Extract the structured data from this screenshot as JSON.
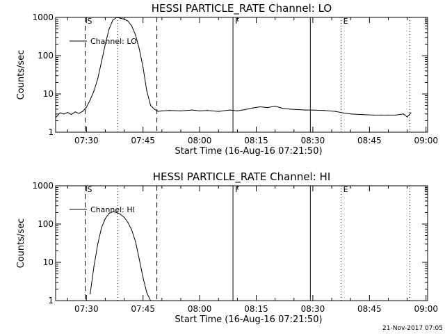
{
  "footer_timestamp": "21-Nov-2017 07:05",
  "chart_data": [
    {
      "type": "line",
      "title": "HESSI PARTICLE_RATE Channel: LO",
      "xlabel": "Start Time (16-Aug-16 07:21:50)",
      "ylabel": "Counts/sec",
      "y_scale": "log",
      "ylim": [
        1,
        1000
      ],
      "xlim": [
        "07:21:50",
        "09:00:25"
      ],
      "x_ticks": [
        "07:30",
        "07:45",
        "08:00",
        "08:15",
        "08:30",
        "08:45",
        "09:00"
      ],
      "y_ticks": [
        "1",
        "10",
        "100",
        "1000"
      ],
      "legend": {
        "placement": "top-left",
        "label": "Channel: LO"
      },
      "markers": [
        {
          "time": "07:29:40",
          "style": "dashed",
          "label": "S"
        },
        {
          "time": "07:48:40",
          "style": "dashed",
          "label": ""
        },
        {
          "time": "07:38:15",
          "style": "dotted",
          "label": ""
        },
        {
          "time": "08:08:50",
          "style": "solid",
          "label": "F"
        },
        {
          "time": "08:29:20",
          "style": "solid",
          "label": ""
        },
        {
          "time": "08:37:30",
          "style": "dotted",
          "label": "E"
        },
        {
          "time": "08:55:40",
          "style": "dotted",
          "label": ""
        }
      ],
      "series": [
        {
          "x": [
            "07:22",
            "07:23",
            "07:24",
            "07:25",
            "07:26",
            "07:27",
            "07:28",
            "07:29",
            "07:30",
            "07:31",
            "07:32",
            "07:33",
            "07:34",
            "07:35",
            "07:36",
            "07:37",
            "07:38",
            "07:39",
            "07:40",
            "07:41",
            "07:42",
            "07:43",
            "07:44",
            "07:45",
            "07:46",
            "07:47",
            "07:48",
            "07:49",
            "07:50",
            "07:52",
            "07:55",
            "07:58",
            "08:00",
            "08:02",
            "08:05",
            "08:08",
            "08:10",
            "08:12",
            "08:14",
            "08:16",
            "08:18",
            "08:20",
            "08:22",
            "08:24",
            "08:26",
            "08:28",
            "08:30",
            "08:33",
            "08:36",
            "08:38",
            "08:40",
            "08:43",
            "08:46",
            "08:48",
            "08:50",
            "08:52",
            "08:54",
            "08:55",
            "08:56"
          ],
          "values": [
            2.5,
            3.2,
            3.0,
            3.3,
            2.9,
            3.4,
            3.1,
            3.5,
            4.5,
            7,
            12,
            25,
            70,
            200,
            500,
            850,
            1000,
            950,
            900,
            800,
            600,
            350,
            150,
            50,
            12,
            5,
            4,
            3.5,
            3.6,
            3.7,
            3.6,
            3.8,
            3.6,
            3.7,
            3.5,
            3.8,
            3.6,
            3.9,
            4.3,
            4.6,
            4.4,
            4.8,
            4.2,
            4.0,
            3.9,
            3.8,
            3.8,
            3.7,
            3.5,
            3.2,
            3.0,
            2.9,
            2.8,
            2.8,
            2.8,
            2.8,
            3.0,
            2.5,
            3.2
          ]
        }
      ]
    },
    {
      "type": "line",
      "title": "HESSI PARTICLE_RATE Channel: HI",
      "xlabel": "Start Time (16-Aug-16 07:21:50)",
      "ylabel": "Counts/sec",
      "y_scale": "log",
      "ylim": [
        1,
        1000
      ],
      "xlim": [
        "07:21:50",
        "09:00:25"
      ],
      "x_ticks": [
        "07:30",
        "07:45",
        "08:00",
        "08:15",
        "08:30",
        "08:45",
        "09:00"
      ],
      "y_ticks": [
        "1",
        "10",
        "100",
        "1000"
      ],
      "legend": {
        "placement": "top-left",
        "label": "Channel: HI"
      },
      "markers": [
        {
          "time": "07:29:40",
          "style": "dashed",
          "label": "S"
        },
        {
          "time": "07:48:40",
          "style": "dashed",
          "label": ""
        },
        {
          "time": "07:38:15",
          "style": "dotted",
          "label": ""
        },
        {
          "time": "08:08:50",
          "style": "solid",
          "label": "F"
        },
        {
          "time": "08:29:20",
          "style": "solid",
          "label": ""
        },
        {
          "time": "08:37:30",
          "style": "dotted",
          "label": "E"
        },
        {
          "time": "08:55:40",
          "style": "dotted",
          "label": ""
        }
      ],
      "series": [
        {
          "x": [
            "07:31",
            "07:32",
            "07:33",
            "07:34",
            "07:35",
            "07:36",
            "07:37",
            "07:38",
            "07:39",
            "07:40",
            "07:41",
            "07:42",
            "07:43",
            "07:44",
            "07:45",
            "07:46",
            "07:47"
          ],
          "values": [
            1.5,
            8,
            30,
            80,
            140,
            190,
            210,
            200,
            180,
            150,
            110,
            70,
            35,
            12,
            4,
            1.6,
            1.0
          ]
        }
      ]
    }
  ]
}
